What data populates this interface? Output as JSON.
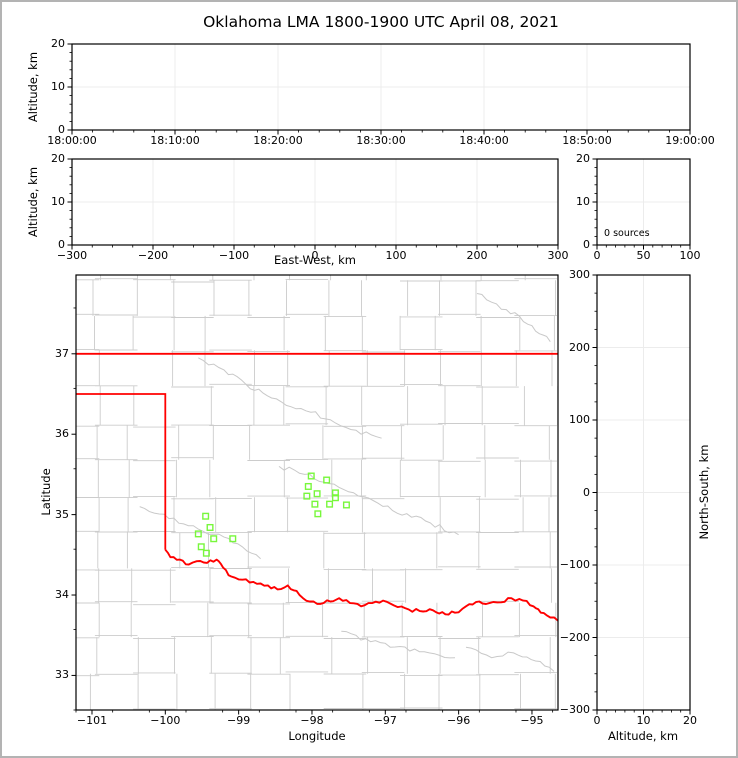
{
  "title": "Oklahoma LMA 1800-1900 UTC April 08, 2021",
  "chart_data": [
    {
      "id": "altitude-vs-time",
      "type": "scatter",
      "xlabel": "",
      "ylabel": "Altitude, km",
      "xlim": [
        0,
        3600
      ],
      "xticks": [
        0,
        600,
        1200,
        1800,
        2400,
        3000,
        3600
      ],
      "xtick_labels": [
        "18:00:00",
        "18:10:00",
        "18:20:00",
        "18:30:00",
        "18:40:00",
        "18:50:00",
        "19:00:00"
      ],
      "ylim": [
        0,
        20
      ],
      "yticks": [
        0,
        10,
        20
      ],
      "grid": true,
      "points": []
    },
    {
      "id": "altitude-vs-eastwest",
      "type": "scatter",
      "xlabel": "East-West, km",
      "ylabel": "Altitude, km",
      "xlim": [
        -300,
        300
      ],
      "xticks": [
        -300,
        -200,
        -100,
        0,
        100,
        200,
        300
      ],
      "ylim": [
        0,
        20
      ],
      "yticks": [
        0,
        10,
        20
      ],
      "grid": true,
      "points": []
    },
    {
      "id": "source-count-histogram",
      "type": "histogram",
      "xlabel": "",
      "ylabel": "",
      "annotation": "0 sources",
      "xlim": [
        0,
        100
      ],
      "xticks": [
        0,
        50,
        100
      ],
      "ylim": [
        0,
        20
      ],
      "yticks": [
        0,
        10,
        20
      ],
      "grid": true,
      "points": []
    },
    {
      "id": "plan-view-map",
      "type": "scatter",
      "xlabel": "Longitude",
      "ylabel": "Latitude",
      "xlim": [
        -101.218,
        -94.645
      ],
      "xticks": [
        -101,
        -100,
        -99,
        -98,
        -97,
        -96,
        -95
      ],
      "ylim": [
        32.57,
        37.98
      ],
      "yticks": [
        33,
        34,
        35,
        36,
        37
      ],
      "grid": false,
      "marker": "open-square",
      "marker_color": "#78f73c",
      "stations": [
        [
          -99.45,
          34.98
        ],
        [
          -99.39,
          34.84
        ],
        [
          -99.55,
          34.76
        ],
        [
          -99.34,
          34.7
        ],
        [
          -99.08,
          34.7
        ],
        [
          -99.51,
          34.6
        ],
        [
          -99.44,
          34.52
        ],
        [
          -98.01,
          35.48
        ],
        [
          -97.8,
          35.43
        ],
        [
          -98.05,
          35.35
        ],
        [
          -97.93,
          35.26
        ],
        [
          -97.68,
          35.27
        ],
        [
          -97.68,
          35.21
        ],
        [
          -98.07,
          35.23
        ],
        [
          -97.96,
          35.13
        ],
        [
          -97.76,
          35.13
        ],
        [
          -97.53,
          35.12
        ],
        [
          -97.92,
          35.01
        ]
      ]
    },
    {
      "id": "northsouth-vs-altitude",
      "type": "scatter",
      "xlabel": "Altitude, km",
      "ylabel": "North-South, km",
      "xlim": [
        0,
        20
      ],
      "xticks": [
        0,
        10,
        20
      ],
      "ylim": [
        -300,
        300
      ],
      "yticks": [
        -300,
        -200,
        -100,
        0,
        100,
        200,
        300
      ],
      "grid": true,
      "points": []
    }
  ],
  "map_features": {
    "border_color": "#ff0000",
    "county_line_color": "#cccccc",
    "stream_line_color": "#c9c9c9",
    "kansas_border": [
      [
        -101.218,
        37.0
      ],
      [
        -94.645,
        37.0
      ]
    ],
    "texas_panhandle_border": [
      [
        -101.218,
        36.5
      ],
      [
        -100.0,
        36.5
      ],
      [
        -100.0,
        34.563
      ]
    ],
    "red_river_border": [
      [
        -100.0,
        34.563
      ],
      [
        -99.93,
        34.47
      ],
      [
        -99.8,
        34.44
      ],
      [
        -99.68,
        34.38
      ],
      [
        -99.57,
        34.42
      ],
      [
        -99.43,
        34.4
      ],
      [
        -99.3,
        34.44
      ],
      [
        -99.21,
        34.34
      ],
      [
        -99.1,
        34.23
      ],
      [
        -98.95,
        34.19
      ],
      [
        -98.75,
        34.14
      ],
      [
        -98.6,
        34.12
      ],
      [
        -98.47,
        34.07
      ],
      [
        -98.33,
        34.12
      ],
      [
        -98.17,
        34.0
      ],
      [
        -98.03,
        33.92
      ],
      [
        -97.93,
        33.89
      ],
      [
        -97.75,
        33.92
      ],
      [
        -97.63,
        33.96
      ],
      [
        -97.48,
        33.9
      ],
      [
        -97.33,
        33.86
      ],
      [
        -97.18,
        33.9
      ],
      [
        -97.03,
        33.93
      ],
      [
        -96.88,
        33.87
      ],
      [
        -96.68,
        33.82
      ],
      [
        -96.53,
        33.8
      ],
      [
        -96.35,
        33.81
      ],
      [
        -96.18,
        33.76
      ],
      [
        -96.05,
        33.78
      ],
      [
        -95.9,
        33.86
      ],
      [
        -95.72,
        33.92
      ],
      [
        -95.58,
        33.9
      ],
      [
        -95.42,
        33.91
      ],
      [
        -95.28,
        33.96
      ],
      [
        -95.12,
        33.93
      ],
      [
        -94.98,
        33.86
      ],
      [
        -94.88,
        33.78
      ],
      [
        -94.75,
        33.72
      ],
      [
        -94.645,
        33.68
      ]
    ]
  },
  "colors": {
    "background": "#ffffff",
    "frame": "#b3b3b3",
    "axis": "#000000",
    "grid": "#ececec"
  }
}
